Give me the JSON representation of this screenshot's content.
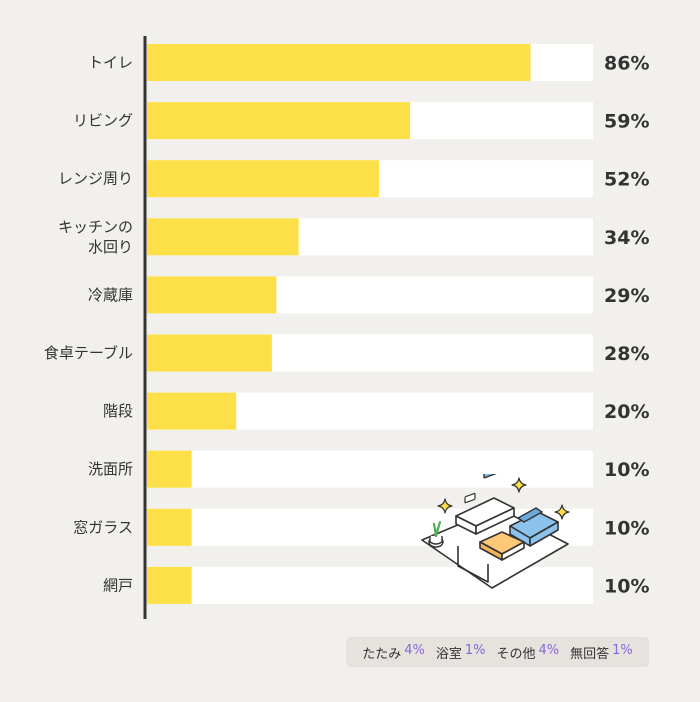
{
  "chart_data": {
    "type": "bar",
    "orientation": "horizontal",
    "categories": [
      [
        "トイレ"
      ],
      [
        "リビング"
      ],
      [
        "レンジ周り"
      ],
      [
        "キッチンの",
        "水回り"
      ],
      [
        "冷蔵庫"
      ],
      [
        "食卓テーブル"
      ],
      [
        "階段"
      ],
      [
        "洗面所"
      ],
      [
        "窓ガラス"
      ],
      [
        "網戸"
      ]
    ],
    "values": [
      86,
      59,
      52,
      34,
      29,
      28,
      20,
      10,
      10,
      10
    ],
    "value_labels": [
      "86%",
      "59%",
      "52%",
      "34%",
      "29%",
      "28%",
      "20%",
      "10%",
      "10%",
      "10%"
    ],
    "xlim": [
      0,
      100
    ],
    "colors": {
      "bar": "#fde047",
      "track": "#ffffff",
      "axis": "#333333"
    }
  },
  "legend_others": [
    {
      "name": "たたみ",
      "value": "4%"
    },
    {
      "name": "浴室",
      "value": "1%"
    },
    {
      "name": "その他",
      "value": "4%"
    },
    {
      "name": "無回答",
      "value": "1%"
    }
  ],
  "colors": {
    "background": "#f2f0ec",
    "accent": "#8866dd"
  },
  "icons": [
    "living-room-illustration-icon",
    "sparkle-icon"
  ]
}
